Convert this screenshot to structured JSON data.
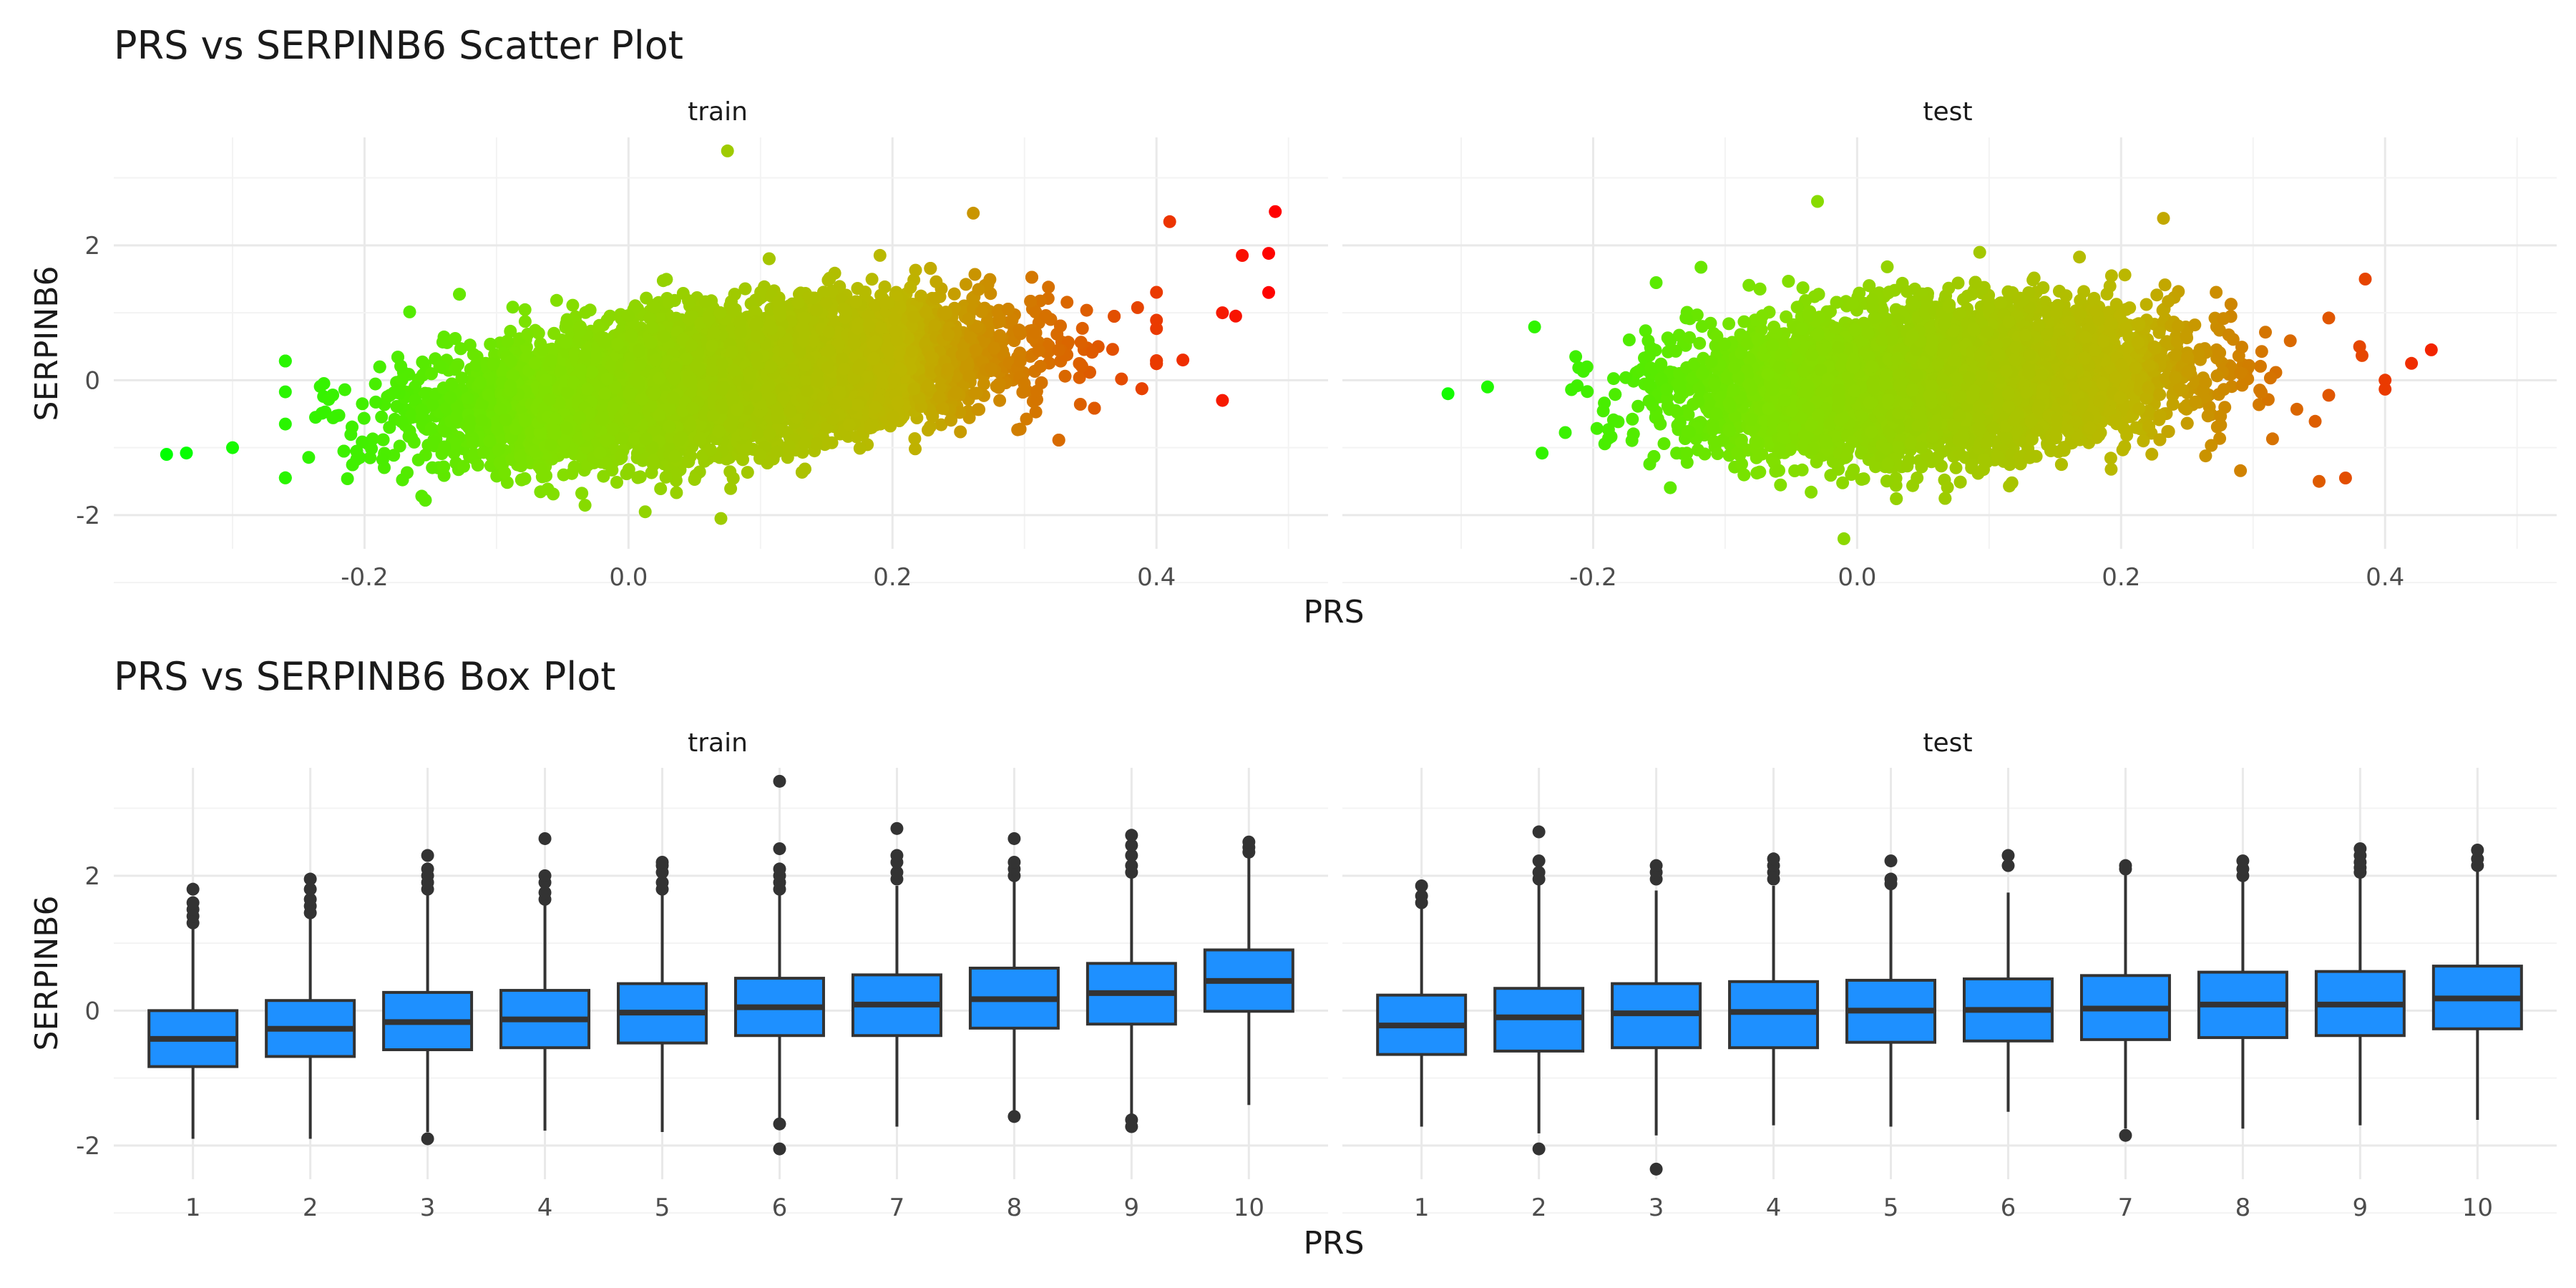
{
  "colors": {
    "grid_major": "#e9e9e9",
    "grid_minor": "#f3f3f3",
    "tick_text": "#4d4d4d",
    "title_text": "#1a1a1a",
    "box_fill": "#1e90ff",
    "box_line": "#333333",
    "gradient": [
      "#00ff00",
      "#7fe100",
      "#bdb600",
      "#ff0000"
    ]
  },
  "scatter": {
    "title": "PRS vs SERPINB6 Scatter Plot",
    "xlabel": "PRS",
    "ylabel": "SERPINB6",
    "panels": [
      {
        "label": "train"
      },
      {
        "label": "test"
      }
    ]
  },
  "box": {
    "title": "PRS vs SERPINB6 Box Plot",
    "xlabel": "PRS",
    "ylabel": "SERPINB6",
    "panels": [
      {
        "label": "train"
      },
      {
        "label": "test"
      }
    ]
  },
  "chart_data": [
    {
      "type": "scatter",
      "title": "PRS vs SERPINB6 Scatter Plot",
      "xlabel": "PRS",
      "ylabel": "SERPINB6",
      "xlim": [
        -0.39,
        0.53
      ],
      "ylim": [
        -2.5,
        3.6
      ],
      "x_ticks": [
        -0.2,
        0.0,
        0.2,
        0.4
      ],
      "x_tick_labels": [
        "-0.2",
        "0.0",
        "0.2",
        "0.4"
      ],
      "y_ticks": [
        -2,
        0,
        2
      ],
      "y_tick_labels": [
        "-2",
        "0",
        "2"
      ],
      "grid": true,
      "color_by": "x",
      "facets": [
        {
          "label": "train",
          "cloud": {
            "x_center": 0.07,
            "x_sd": 0.1,
            "slope": 2.2,
            "y_sd": 0.48,
            "n": 9000
          },
          "extreme_points": [
            {
              "x": -0.35,
              "y": -1.1
            },
            {
              "x": -0.335,
              "y": -1.08
            },
            {
              "x": -0.3,
              "y": -1.0
            },
            {
              "x": 0.075,
              "y": 3.4
            },
            {
              "x": 0.07,
              "y": -2.05
            },
            {
              "x": 0.49,
              "y": 2.5
            },
            {
              "x": 0.485,
              "y": 1.88
            },
            {
              "x": 0.465,
              "y": 1.85
            },
            {
              "x": 0.485,
              "y": 1.3
            },
            {
              "x": 0.45,
              "y": 1.0
            },
            {
              "x": 0.46,
              "y": 0.95
            },
            {
              "x": 0.45,
              "y": -0.3
            },
            {
              "x": 0.42,
              "y": 0.3
            },
            {
              "x": 0.41,
              "y": 2.35
            }
          ]
        },
        {
          "label": "test",
          "cloud": {
            "x_center": 0.06,
            "x_sd": 0.09,
            "slope": 1.0,
            "y_sd": 0.52,
            "n": 6000
          },
          "extreme_points": [
            {
              "x": -0.31,
              "y": -0.2
            },
            {
              "x": -0.28,
              "y": -0.1
            },
            {
              "x": -0.03,
              "y": 2.65
            },
            {
              "x": -0.01,
              "y": -2.35
            },
            {
              "x": 0.435,
              "y": 0.45
            },
            {
              "x": 0.42,
              "y": 0.25
            },
            {
              "x": 0.4,
              "y": 0.0
            },
            {
              "x": 0.385,
              "y": 1.5
            },
            {
              "x": 0.35,
              "y": -1.5
            },
            {
              "x": 0.37,
              "y": -1.45
            }
          ]
        }
      ]
    },
    {
      "type": "box",
      "title": "PRS vs SERPINB6 Box Plot",
      "xlabel": "PRS",
      "ylabel": "SERPINB6",
      "categories": [
        "1",
        "2",
        "3",
        "4",
        "5",
        "6",
        "7",
        "8",
        "9",
        "10"
      ],
      "ylim": [
        -2.5,
        3.6
      ],
      "y_ticks": [
        -2,
        0,
        2
      ],
      "y_tick_labels": [
        "-2",
        "0",
        "2"
      ],
      "grid": true,
      "facets": [
        {
          "label": "train",
          "boxes": [
            {
              "q1": -0.83,
              "median": -0.42,
              "q3": 0.0,
              "whisker_low": -1.9,
              "whisker_high": 1.22,
              "outliers": [
                1.3,
                1.4,
                1.5,
                1.6,
                1.8
              ]
            },
            {
              "q1": -0.68,
              "median": -0.27,
              "q3": 0.15,
              "whisker_low": -1.9,
              "whisker_high": 1.4,
              "outliers": [
                1.45,
                1.55,
                1.65,
                1.8,
                1.95
              ]
            },
            {
              "q1": -0.58,
              "median": -0.17,
              "q3": 0.27,
              "whisker_low": -1.8,
              "whisker_high": 1.75,
              "outliers": [
                1.8,
                1.9,
                2.0,
                2.1,
                2.3,
                -1.9
              ]
            },
            {
              "q1": -0.55,
              "median": -0.13,
              "q3": 0.3,
              "whisker_low": -1.78,
              "whisker_high": 1.6,
              "outliers": [
                1.65,
                1.75,
                1.9,
                2.0,
                2.55
              ]
            },
            {
              "q1": -0.48,
              "median": -0.03,
              "q3": 0.4,
              "whisker_low": -1.8,
              "whisker_high": 1.75,
              "outliers": [
                1.8,
                1.9,
                2.05,
                2.15,
                2.2
              ]
            },
            {
              "q1": -0.37,
              "median": 0.05,
              "q3": 0.48,
              "whisker_low": -1.6,
              "whisker_high": 1.75,
              "outliers": [
                1.8,
                1.9,
                2.0,
                2.1,
                2.4,
                3.4,
                -1.68,
                -2.05
              ]
            },
            {
              "q1": -0.37,
              "median": 0.09,
              "q3": 0.53,
              "whisker_low": -1.72,
              "whisker_high": 1.85,
              "outliers": [
                1.95,
                2.05,
                2.2,
                2.3,
                2.7
              ]
            },
            {
              "q1": -0.26,
              "median": 0.17,
              "q3": 0.63,
              "whisker_low": -1.5,
              "whisker_high": 1.95,
              "outliers": [
                2.0,
                2.1,
                2.2,
                2.55,
                -1.57
              ]
            },
            {
              "q1": -0.2,
              "median": 0.26,
              "q3": 0.7,
              "whisker_low": -1.55,
              "whisker_high": 2.0,
              "outliers": [
                2.05,
                2.15,
                2.3,
                2.45,
                2.6,
                -1.62,
                -1.72
              ]
            },
            {
              "q1": -0.01,
              "median": 0.44,
              "q3": 0.9,
              "whisker_low": -1.4,
              "whisker_high": 2.28,
              "outliers": [
                2.35,
                2.42,
                2.5
              ]
            }
          ]
        },
        {
          "label": "test",
          "boxes": [
            {
              "q1": -0.65,
              "median": -0.22,
              "q3": 0.23,
              "whisker_low": -1.72,
              "whisker_high": 1.55,
              "outliers": [
                1.6,
                1.7,
                1.85
              ]
            },
            {
              "q1": -0.6,
              "median": -0.1,
              "q3": 0.33,
              "whisker_low": -1.82,
              "whisker_high": 1.9,
              "outliers": [
                1.95,
                2.05,
                2.22,
                2.65,
                -2.05
              ]
            },
            {
              "q1": -0.55,
              "median": -0.04,
              "q3": 0.4,
              "whisker_low": -1.85,
              "whisker_high": 1.78,
              "outliers": [
                1.95,
                2.05,
                2.15,
                -2.35
              ]
            },
            {
              "q1": -0.55,
              "median": -0.02,
              "q3": 0.43,
              "whisker_low": -1.7,
              "whisker_high": 1.85,
              "outliers": [
                1.95,
                2.05,
                2.15,
                2.25
              ]
            },
            {
              "q1": -0.47,
              "median": 0.0,
              "q3": 0.45,
              "whisker_low": -1.72,
              "whisker_high": 1.82,
              "outliers": [
                1.88,
                1.95,
                2.22
              ]
            },
            {
              "q1": -0.45,
              "median": 0.01,
              "q3": 0.47,
              "whisker_low": -1.5,
              "whisker_high": 1.75,
              "outliers": [
                2.15,
                2.3
              ]
            },
            {
              "q1": -0.43,
              "median": 0.03,
              "q3": 0.52,
              "whisker_low": -1.75,
              "whisker_high": 2.05,
              "outliers": [
                2.1,
                2.15,
                -1.85
              ]
            },
            {
              "q1": -0.4,
              "median": 0.09,
              "q3": 0.57,
              "whisker_low": -1.75,
              "whisker_high": 1.95,
              "outliers": [
                2.0,
                2.1,
                2.22
              ]
            },
            {
              "q1": -0.37,
              "median": 0.09,
              "q3": 0.58,
              "whisker_low": -1.7,
              "whisker_high": 2.0,
              "outliers": [
                2.05,
                2.12,
                2.2,
                2.3,
                2.4
              ]
            },
            {
              "q1": -0.27,
              "median": 0.18,
              "q3": 0.66,
              "whisker_low": -1.62,
              "whisker_high": 2.1,
              "outliers": [
                2.15,
                2.25,
                2.38
              ]
            }
          ]
        }
      ]
    }
  ]
}
